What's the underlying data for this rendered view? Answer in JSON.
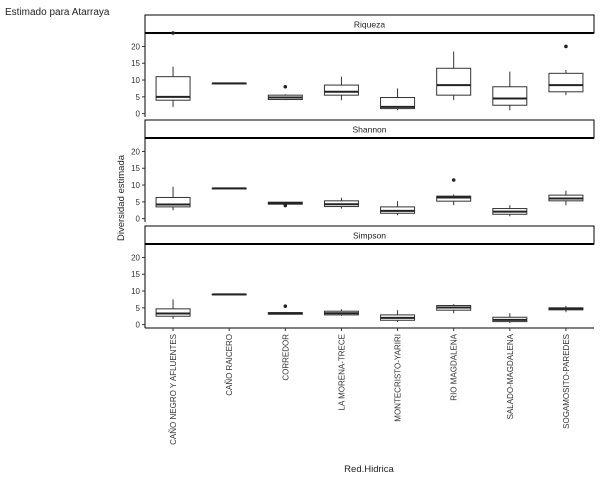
{
  "chart_data": {
    "type": "boxplot",
    "title": "Estimado para Atarraya",
    "xlabel": "Red.Hidrica",
    "ylabel": "Diversidad estimada",
    "ylim": [
      -1,
      24
    ],
    "yticks": [
      0,
      5,
      10,
      15,
      20
    ],
    "grid": false,
    "legend": "none",
    "categories": [
      "CAÑO NEGRO Y AFLUENTES",
      "CAÑO RAICERO",
      "CORREDOR",
      "LA MORENA-TRECE",
      "MONTECRISTO-YARIRI",
      "RIO MAGDALENA",
      "SALADO-MAGDALENA",
      "SOGAMOSITO-PAREDES"
    ],
    "panels": [
      {
        "name": "Riqueza",
        "boxes": [
          {
            "min": 2,
            "q1": 4,
            "median": 5,
            "q3": 11,
            "max": 14,
            "outliers": [
              24
            ]
          },
          {
            "min": 9,
            "q1": 9,
            "median": 9,
            "q3": 9,
            "max": 9,
            "outliers": []
          },
          {
            "min": 4,
            "q1": 4.2,
            "median": 4.8,
            "q3": 5.5,
            "max": 5.8,
            "outliers": [
              8
            ]
          },
          {
            "min": 4,
            "q1": 5.5,
            "median": 6.5,
            "q3": 8.5,
            "max": 11,
            "outliers": []
          },
          {
            "min": 1,
            "q1": 1.5,
            "median": 2,
            "q3": 4.8,
            "max": 7.5,
            "outliers": []
          },
          {
            "min": 4,
            "q1": 5.5,
            "median": 8.5,
            "q3": 13.5,
            "max": 18.5,
            "outliers": []
          },
          {
            "min": 1,
            "q1": 2.5,
            "median": 4.5,
            "q3": 8,
            "max": 12.5,
            "outliers": []
          },
          {
            "min": 5.5,
            "q1": 6.5,
            "median": 8.5,
            "q3": 12,
            "max": 13,
            "outliers": [
              20
            ]
          }
        ]
      },
      {
        "name": "Shannon",
        "boxes": [
          {
            "min": 2.5,
            "q1": 3.5,
            "median": 4.2,
            "q3": 6.3,
            "max": 9.5,
            "outliers": []
          },
          {
            "min": 9,
            "q1": 9,
            "median": 9,
            "q3": 9,
            "max": 9,
            "outliers": []
          },
          {
            "min": 4.2,
            "q1": 4.3,
            "median": 4.6,
            "q3": 4.9,
            "max": 5,
            "outliers": [
              3.9
            ]
          },
          {
            "min": 3,
            "q1": 3.6,
            "median": 4.3,
            "q3": 5.3,
            "max": 6.2,
            "outliers": []
          },
          {
            "min": 1,
            "q1": 1.6,
            "median": 2.3,
            "q3": 3.5,
            "max": 5.2,
            "outliers": []
          },
          {
            "min": 4,
            "q1": 5.2,
            "median": 6.3,
            "q3": 6.7,
            "max": 7.2,
            "outliers": [
              11.5
            ]
          },
          {
            "min": 0.7,
            "q1": 1.3,
            "median": 2.1,
            "q3": 3,
            "max": 4,
            "outliers": []
          },
          {
            "min": 4,
            "q1": 5.3,
            "median": 6,
            "q3": 7,
            "max": 8.3,
            "outliers": []
          }
        ]
      },
      {
        "name": "Simpson",
        "boxes": [
          {
            "min": 1.7,
            "q1": 2.5,
            "median": 3.3,
            "q3": 4.7,
            "max": 7.5,
            "outliers": []
          },
          {
            "min": 9,
            "q1": 9,
            "median": 9,
            "q3": 9,
            "max": 9,
            "outliers": []
          },
          {
            "min": 3,
            "q1": 3.1,
            "median": 3.3,
            "q3": 3.6,
            "max": 3.8,
            "outliers": [
              5.5
            ]
          },
          {
            "min": 2.6,
            "q1": 2.9,
            "median": 3.4,
            "q3": 4,
            "max": 4.6,
            "outliers": []
          },
          {
            "min": 0.8,
            "q1": 1.3,
            "median": 2,
            "q3": 2.9,
            "max": 4.3,
            "outliers": []
          },
          {
            "min": 3.4,
            "q1": 4.3,
            "median": 5.1,
            "q3": 5.7,
            "max": 6.1,
            "outliers": []
          },
          {
            "min": 0.5,
            "q1": 0.9,
            "median": 1.4,
            "q3": 2.2,
            "max": 3.4,
            "outliers": []
          },
          {
            "min": 3.7,
            "q1": 4.4,
            "median": 4.8,
            "q3": 5,
            "max": 5.6,
            "outliers": []
          }
        ]
      }
    ]
  }
}
